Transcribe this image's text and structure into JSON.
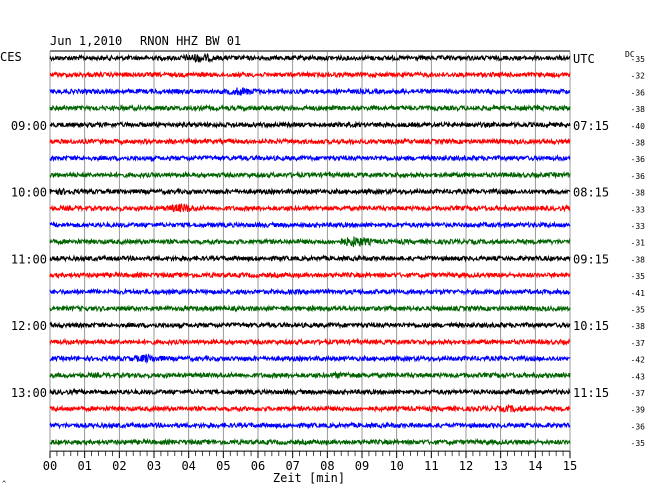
{
  "header": {
    "date": "Jun 1,2010",
    "station": "RNON HHZ BW 01",
    "left_tz": "CES",
    "right_tz": "UTC",
    "dc_label": "DC"
  },
  "chart_data": {
    "type": "line",
    "title": "Jun 1,2010   RNON HHZ BW 01",
    "xlabel": "Zeit [min]",
    "xlim": [
      0,
      15
    ],
    "x_ticks": [
      "00",
      "01",
      "02",
      "03",
      "04",
      "05",
      "06",
      "07",
      "08",
      "09",
      "10",
      "11",
      "12",
      "13",
      "14",
      "15"
    ],
    "grid": true,
    "left_time_labels": [
      {
        "row": 4,
        "label": "09:00"
      },
      {
        "row": 8,
        "label": "10:00"
      },
      {
        "row": 12,
        "label": "11:00"
      },
      {
        "row": 16,
        "label": "12:00"
      },
      {
        "row": 20,
        "label": "13:00"
      }
    ],
    "right_time_labels": [
      {
        "row": 0,
        "label": "UTC"
      },
      {
        "row": 4,
        "label": "07:15"
      },
      {
        "row": 8,
        "label": "08:15"
      },
      {
        "row": 12,
        "label": "09:15"
      },
      {
        "row": 16,
        "label": "10:15"
      },
      {
        "row": 20,
        "label": "11:15"
      }
    ],
    "dc_offsets": [
      "-35",
      "-32",
      "-36",
      "-38",
      "-40",
      "-38",
      "-36",
      "-36",
      "-38",
      "-33",
      "-33",
      "-31",
      "-38",
      "-35",
      "-41",
      "-35",
      "-38",
      "-37",
      "-42",
      "-43",
      "-37",
      "-39",
      "-36",
      "-35"
    ],
    "trace_colors": [
      "#000000",
      "#ff0000",
      "#0000ff",
      "#006400"
    ],
    "events": [
      {
        "row": 0,
        "minute": 4.3,
        "amp": 2.2
      },
      {
        "row": 2,
        "minute": 5.5,
        "amp": 2.0
      },
      {
        "row": 8,
        "minute": 0.2,
        "amp": 1.6
      },
      {
        "row": 9,
        "minute": 3.8,
        "amp": 2.2
      },
      {
        "row": 11,
        "minute": 8.8,
        "amp": 2.6
      },
      {
        "row": 18,
        "minute": 2.8,
        "amp": 2.0
      },
      {
        "row": 19,
        "minute": 8.5,
        "amp": 1.5
      },
      {
        "row": 21,
        "minute": 13.3,
        "amp": 1.6
      }
    ]
  }
}
